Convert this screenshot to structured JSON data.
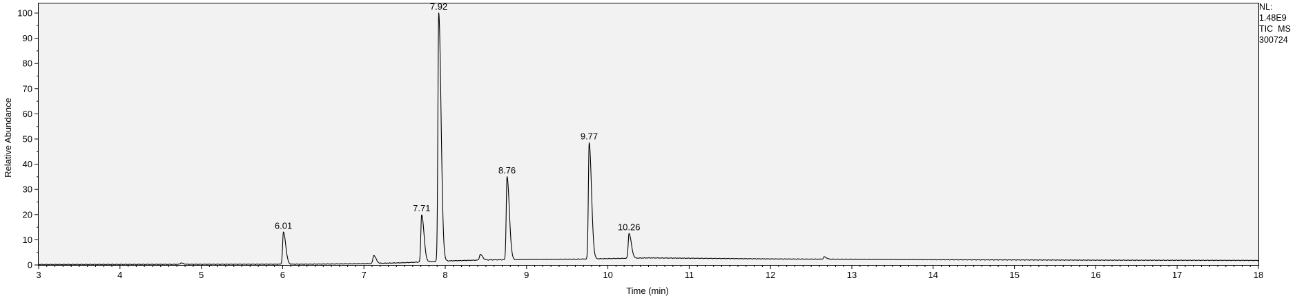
{
  "chart_data": {
    "type": "line",
    "xlabel": "Time (min)",
    "ylabel": "Relative Abundance",
    "xlim": [
      3,
      18
    ],
    "ylim": [
      0,
      100
    ],
    "x_ticks": [
      3,
      4,
      5,
      6,
      7,
      8,
      9,
      10,
      11,
      12,
      13,
      14,
      15,
      16,
      17,
      18
    ],
    "y_ticks": [
      0,
      10,
      20,
      30,
      40,
      50,
      60,
      70,
      80,
      90,
      100
    ],
    "baseline_profile": [
      [
        3.0,
        0.2
      ],
      [
        6.3,
        0.3
      ],
      [
        7.0,
        0.5
      ],
      [
        7.5,
        0.9
      ],
      [
        8.0,
        1.6
      ],
      [
        8.5,
        2.0
      ],
      [
        9.0,
        2.2
      ],
      [
        9.6,
        2.3
      ],
      [
        10.5,
        2.8
      ],
      [
        12.0,
        2.4
      ],
      [
        14.0,
        2.1
      ],
      [
        16.0,
        1.9
      ],
      [
        18.0,
        1.8
      ]
    ],
    "peaks": [
      {
        "x": 6.01,
        "y": 13,
        "label": "6.01"
      },
      {
        "x": 7.71,
        "y": 20,
        "label": "7.71"
      },
      {
        "x": 7.92,
        "y": 100,
        "label": "7.92"
      },
      {
        "x": 8.76,
        "y": 35,
        "label": "8.76"
      },
      {
        "x": 9.77,
        "y": 48.5,
        "label": "9.77"
      },
      {
        "x": 10.26,
        "y": 12.5,
        "label": "10.26"
      }
    ],
    "minor_peaks": [
      {
        "x": 4.75,
        "y": 0.8
      },
      {
        "x": 7.12,
        "y": 3.8
      },
      {
        "x": 8.43,
        "y": 4.2
      },
      {
        "x": 12.66,
        "y": 3.2
      }
    ],
    "annotations": [
      "NL:",
      "1.48E9",
      "TIC  MS",
      "300724"
    ]
  }
}
